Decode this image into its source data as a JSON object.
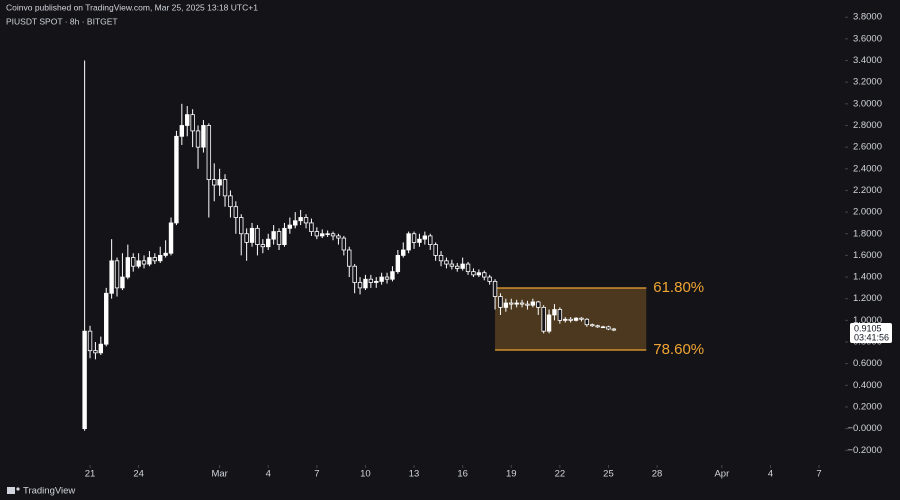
{
  "header": {
    "published": "Coinvo published on TradingView.com, Mar 25, 2025 13:18 UTC+1",
    "symbol": "PIUSDT SPOT · 8h · BITGET"
  },
  "footer": {
    "brand": "TradingView"
  },
  "chart_data": {
    "type": "candlestick",
    "up_color": "#ffffff",
    "down_color": "#141418",
    "wick_color": "#ffffff",
    "open": [
      0.0,
      0.9,
      0.72,
      0.7,
      0.78,
      1.25,
      1.55,
      1.3,
      1.4,
      1.58,
      1.5,
      1.55,
      1.52,
      1.58,
      1.55,
      1.6,
      1.62,
      1.9,
      2.7,
      2.8,
      2.9,
      2.75,
      2.6,
      2.8,
      2.3,
      2.25,
      2.3,
      2.15,
      2.05,
      1.95,
      1.8,
      1.72,
      1.85,
      1.7,
      1.68,
      1.75,
      1.82,
      1.7,
      1.85,
      1.88,
      1.92,
      1.95,
      1.9,
      1.82,
      1.78,
      1.8,
      1.8,
      1.78,
      1.76,
      1.65,
      1.5,
      1.35,
      1.3,
      1.38,
      1.35,
      1.36,
      1.4,
      1.38,
      1.45,
      1.6,
      1.65,
      1.8,
      1.72,
      1.75,
      1.78,
      1.7,
      1.6,
      1.55,
      1.52,
      1.5,
      1.48,
      1.52,
      1.45,
      1.42,
      1.44,
      1.4,
      1.36,
      1.22,
      1.12,
      1.16,
      1.15,
      1.16,
      1.15,
      1.14,
      1.17,
      1.12,
      0.9,
      1.05,
      1.1,
      1.0,
      1.01,
      1.0,
      1.02,
      1.01,
      0.96,
      0.95,
      0.94,
      0.94,
      0.92
    ],
    "high": [
      3.4,
      0.95,
      0.8,
      0.85,
      1.3,
      1.75,
      1.58,
      1.62,
      1.7,
      1.62,
      1.62,
      1.6,
      1.64,
      1.62,
      1.68,
      1.74,
      1.95,
      2.75,
      3.0,
      2.98,
      2.95,
      2.8,
      2.85,
      2.82,
      2.45,
      2.4,
      2.35,
      2.2,
      2.1,
      1.98,
      1.85,
      1.9,
      1.88,
      1.75,
      1.8,
      1.88,
      1.85,
      1.9,
      1.95,
      2.0,
      2.02,
      1.98,
      1.94,
      1.86,
      1.84,
      1.83,
      1.82,
      1.8,
      1.78,
      1.68,
      1.52,
      1.4,
      1.42,
      1.42,
      1.4,
      1.44,
      1.44,
      1.5,
      1.65,
      1.72,
      1.82,
      1.82,
      1.8,
      1.82,
      1.8,
      1.72,
      1.64,
      1.58,
      1.56,
      1.53,
      1.58,
      1.54,
      1.48,
      1.47,
      1.46,
      1.42,
      1.38,
      1.25,
      1.2,
      1.2,
      1.19,
      1.19,
      1.18,
      1.2,
      1.18,
      1.14,
      1.1,
      1.15,
      1.12,
      1.03,
      1.03,
      1.03,
      1.03,
      1.02,
      0.97,
      0.96,
      0.95,
      0.95,
      0.93
    ],
    "low": [
      -0.02,
      0.65,
      0.64,
      0.68,
      0.76,
      1.2,
      1.22,
      1.28,
      1.38,
      1.45,
      1.48,
      1.48,
      1.5,
      1.52,
      1.53,
      1.58,
      1.6,
      1.88,
      2.62,
      2.7,
      2.6,
      2.4,
      2.55,
      1.95,
      2.1,
      2.15,
      2.05,
      1.95,
      1.8,
      1.6,
      1.55,
      1.68,
      1.6,
      1.62,
      1.65,
      1.7,
      1.65,
      1.68,
      1.8,
      1.85,
      1.88,
      1.85,
      1.78,
      1.75,
      1.76,
      1.77,
      1.74,
      1.7,
      1.6,
      1.4,
      1.25,
      1.24,
      1.28,
      1.3,
      1.3,
      1.33,
      1.34,
      1.36,
      1.43,
      1.58,
      1.62,
      1.66,
      1.68,
      1.7,
      1.65,
      1.55,
      1.5,
      1.48,
      1.47,
      1.45,
      1.46,
      1.42,
      1.4,
      1.4,
      1.37,
      1.33,
      1.1,
      1.05,
      1.08,
      1.1,
      1.12,
      1.12,
      1.1,
      1.12,
      1.05,
      0.88,
      0.88,
      1.0,
      0.97,
      0.98,
      0.98,
      0.99,
      0.99,
      0.94,
      0.94,
      0.93,
      0.93,
      0.91,
      0.9
    ],
    "close": [
      0.9,
      0.72,
      0.7,
      0.78,
      1.25,
      1.55,
      1.3,
      1.4,
      1.58,
      1.5,
      1.55,
      1.52,
      1.58,
      1.55,
      1.6,
      1.62,
      1.9,
      2.7,
      2.8,
      2.9,
      2.75,
      2.6,
      2.8,
      2.3,
      2.25,
      2.3,
      2.15,
      2.05,
      1.95,
      1.8,
      1.72,
      1.85,
      1.7,
      1.68,
      1.75,
      1.82,
      1.7,
      1.85,
      1.88,
      1.92,
      1.95,
      1.9,
      1.82,
      1.78,
      1.8,
      1.8,
      1.78,
      1.76,
      1.65,
      1.5,
      1.35,
      1.3,
      1.38,
      1.35,
      1.36,
      1.4,
      1.38,
      1.45,
      1.6,
      1.65,
      1.8,
      1.72,
      1.75,
      1.78,
      1.7,
      1.6,
      1.55,
      1.52,
      1.5,
      1.48,
      1.52,
      1.45,
      1.42,
      1.44,
      1.4,
      1.36,
      1.22,
      1.12,
      1.16,
      1.15,
      1.16,
      1.15,
      1.14,
      1.17,
      1.12,
      0.9,
      1.05,
      1.1,
      1.0,
      1.01,
      1.0,
      1.02,
      1.01,
      0.96,
      0.95,
      0.94,
      0.94,
      0.92,
      0.9105
    ],
    "countdown": "03:41:56",
    "xlim": [
      -15.67,
      140.8
    ],
    "xticks": [
      {
        "value": 1,
        "label": "21"
      },
      {
        "value": 10,
        "label": "24"
      },
      {
        "value": 25,
        "label": "Mar"
      },
      {
        "value": 34,
        "label": "4"
      },
      {
        "value": 43,
        "label": "7"
      },
      {
        "value": 52,
        "label": "10"
      },
      {
        "value": 61,
        "label": "13"
      },
      {
        "value": 70,
        "label": "16"
      },
      {
        "value": 79,
        "label": "19"
      },
      {
        "value": 88,
        "label": "22"
      },
      {
        "value": 97,
        "label": "25"
      },
      {
        "value": 106,
        "label": "28"
      },
      {
        "value": 118,
        "label": "Apr"
      },
      {
        "value": 127,
        "label": "4"
      },
      {
        "value": 136,
        "label": "7"
      }
    ],
    "ylim": [
      -0.336,
      3.959
    ],
    "yticks": [
      {
        "value": 3.8,
        "label": "3.8000"
      },
      {
        "value": 3.6,
        "label": "3.6000"
      },
      {
        "value": 3.4,
        "label": "3.4000"
      },
      {
        "value": 3.2,
        "label": "3.2000"
      },
      {
        "value": 3.0,
        "label": "3.0000"
      },
      {
        "value": 2.8,
        "label": "2.8000"
      },
      {
        "value": 2.6,
        "label": "2.6000"
      },
      {
        "value": 2.4,
        "label": "2.4000"
      },
      {
        "value": 2.2,
        "label": "2.2000"
      },
      {
        "value": 2.0,
        "label": "2.0000"
      },
      {
        "value": 1.8,
        "label": "1.8000"
      },
      {
        "value": 1.6,
        "label": "1.6000"
      },
      {
        "value": 1.4,
        "label": "1.4000"
      },
      {
        "value": 1.2,
        "label": "1.2000"
      },
      {
        "value": 1.0,
        "label": "1.0000"
      },
      {
        "value": 0.8,
        "label": "0.8000"
      },
      {
        "value": 0.6,
        "label": "0.6000"
      },
      {
        "value": 0.4,
        "label": "0.4000"
      },
      {
        "value": 0.2,
        "label": "0.2000"
      },
      {
        "value": 0,
        "label": "−0.0000"
      },
      {
        "value": -0.2,
        "label": "−0.2000"
      }
    ],
    "fib": {
      "color": "#f0a433",
      "from": 76,
      "to": 104,
      "levels": [
        {
          "value": 1.299,
          "label": "61.80%"
        },
        {
          "value": 0.726,
          "label": "78.60%"
        }
      ]
    }
  }
}
